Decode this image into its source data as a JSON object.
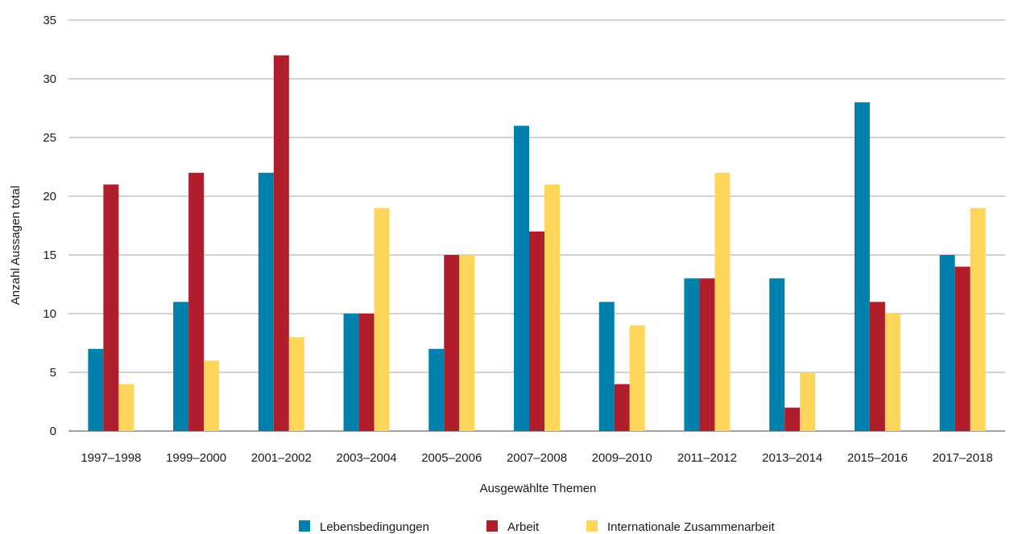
{
  "chart_data": {
    "type": "bar",
    "title": "",
    "xlabel": "Ausgewählte Themen",
    "ylabel": "Anzahl Aussagen  total",
    "ylim": [
      0,
      35
    ],
    "yticks": [
      0,
      5,
      10,
      15,
      20,
      25,
      30,
      35
    ],
    "grid": true,
    "legend_position": "bottom",
    "categories": [
      "1997–1998",
      "1999–2000",
      "2001–2002",
      "2003–2004",
      "2005–2006",
      "2007–2008",
      "2009–2010",
      "2011–2012",
      "2013–2014",
      "2015–2016",
      "2017–2018"
    ],
    "series": [
      {
        "name": "Lebensbedingungen",
        "color": "#0080ad",
        "values": [
          7,
          11,
          22,
          10,
          7,
          26,
          11,
          13,
          13,
          28,
          15
        ]
      },
      {
        "name": "Arbeit",
        "color": "#b01e2c",
        "values": [
          21,
          22,
          32,
          10,
          15,
          17,
          4,
          13,
          2,
          11,
          14
        ]
      },
      {
        "name": "Internationale Zusammenarbeit",
        "color": "#fed65a",
        "values": [
          4,
          6,
          8,
          19,
          15,
          21,
          9,
          22,
          5,
          10,
          19
        ]
      }
    ]
  }
}
